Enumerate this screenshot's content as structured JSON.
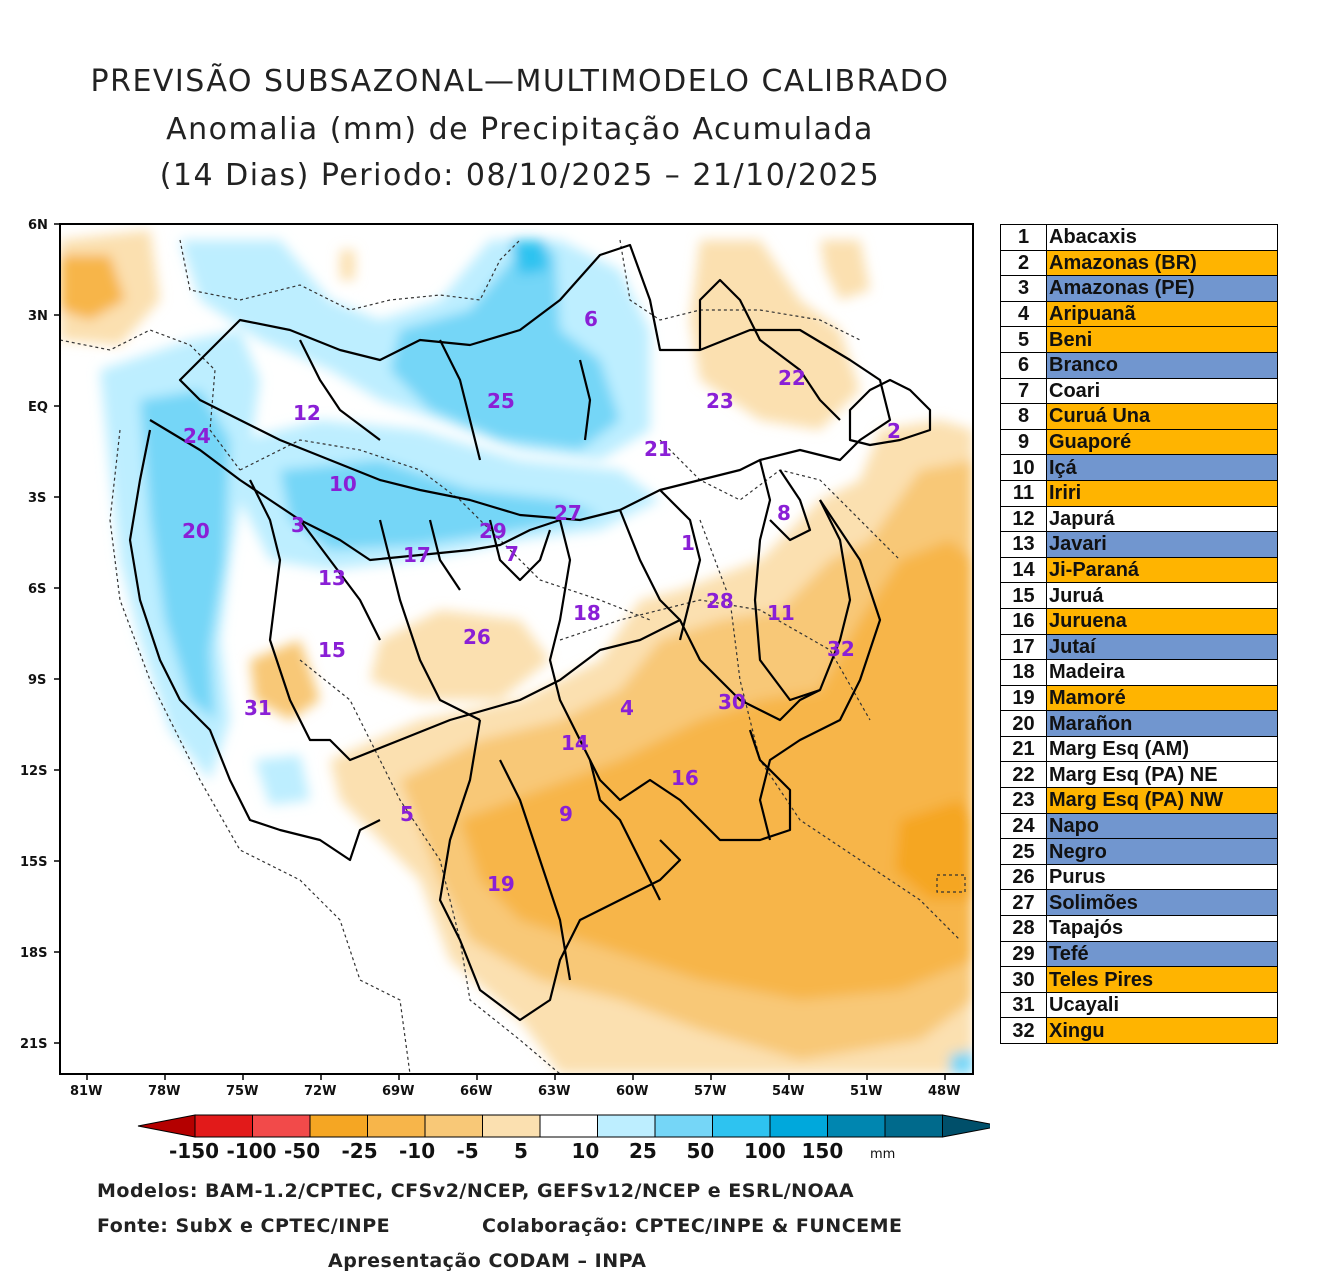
{
  "title": {
    "line1": "PREVISÃO SUBSAZONAL—MULTIMODELO CALIBRADO",
    "line2": "Anomalia (mm) de Precipitação Acumulada",
    "line3": "(14 Dias) Periodo: 08/10/2025 – 21/10/2025"
  },
  "map": {
    "lat_labels": [
      "6N",
      "3N",
      "EQ",
      "3S",
      "6S",
      "9S",
      "12S",
      "15S",
      "18S",
      "21S"
    ],
    "lon_labels": [
      "81W",
      "78W",
      "75W",
      "72W",
      "69W",
      "66W",
      "63W",
      "60W",
      "57W",
      "54W",
      "51W",
      "48W"
    ]
  },
  "basin_labels": [
    "1",
    "2",
    "3",
    "4",
    "5",
    "6",
    "7",
    "8",
    "9",
    "10",
    "11",
    "12",
    "13",
    "14",
    "15",
    "16",
    "17",
    "18",
    "19",
    "20",
    "21",
    "22",
    "23",
    "24",
    "25",
    "26",
    "27",
    "28",
    "29",
    "30",
    "31",
    "32"
  ],
  "legend": [
    {
      "num": "1",
      "name": "Abacaxis",
      "color": "#ffffff"
    },
    {
      "num": "2",
      "name": "Amazonas (BR)",
      "color": "#ffb400"
    },
    {
      "num": "3",
      "name": "Amazonas (PE)",
      "color": "#7196cf"
    },
    {
      "num": "4",
      "name": "Aripuanã",
      "color": "#ffb400"
    },
    {
      "num": "5",
      "name": "Beni",
      "color": "#ffb400"
    },
    {
      "num": "6",
      "name": "Branco",
      "color": "#7196cf"
    },
    {
      "num": "7",
      "name": "Coari",
      "color": "#ffffff"
    },
    {
      "num": "8",
      "name": "Curuá Una",
      "color": "#ffb400"
    },
    {
      "num": "9",
      "name": "Guaporé",
      "color": "#ffb400"
    },
    {
      "num": "10",
      "name": "Içá",
      "color": "#7196cf"
    },
    {
      "num": "11",
      "name": "Iriri",
      "color": "#ffb400"
    },
    {
      "num": "12",
      "name": "Japurá",
      "color": "#ffffff"
    },
    {
      "num": "13",
      "name": "Javari",
      "color": "#7196cf"
    },
    {
      "num": "14",
      "name": "Ji-Paraná",
      "color": "#ffb400"
    },
    {
      "num": "15",
      "name": "Juruá",
      "color": "#ffffff"
    },
    {
      "num": "16",
      "name": "Juruena",
      "color": "#ffb400"
    },
    {
      "num": "17",
      "name": "Jutaí",
      "color": "#7196cf"
    },
    {
      "num": "18",
      "name": "Madeira",
      "color": "#ffffff"
    },
    {
      "num": "19",
      "name": "Mamoré",
      "color": "#ffb400"
    },
    {
      "num": "20",
      "name": "Marañon",
      "color": "#7196cf"
    },
    {
      "num": "21",
      "name": "Marg Esq (AM)",
      "color": "#ffffff"
    },
    {
      "num": "22",
      "name": "Marg Esq (PA) NE",
      "color": "#ffffff"
    },
    {
      "num": "23",
      "name": "Marg Esq (PA) NW",
      "color": "#ffb400"
    },
    {
      "num": "24",
      "name": "Napo",
      "color": "#7196cf"
    },
    {
      "num": "25",
      "name": "Negro",
      "color": "#7196cf"
    },
    {
      "num": "26",
      "name": "Purus",
      "color": "#ffffff"
    },
    {
      "num": "27",
      "name": "Solimões",
      "color": "#7196cf"
    },
    {
      "num": "28",
      "name": "Tapajós",
      "color": "#ffffff"
    },
    {
      "num": "29",
      "name": "Tefé",
      "color": "#7196cf"
    },
    {
      "num": "30",
      "name": "Teles Pires",
      "color": "#ffb400"
    },
    {
      "num": "31",
      "name": "Ucayali",
      "color": "#ffffff"
    },
    {
      "num": "32",
      "name": "Xingu",
      "color": "#ffb400"
    }
  ],
  "colorbar": {
    "labels": [
      "-150",
      "-100",
      "-50",
      "-25",
      "-10",
      "-5",
      "5",
      "10",
      "25",
      "50",
      "100",
      "150"
    ],
    "unit": "mm",
    "colors": [
      "#b40000",
      "#e21a1a",
      "#f24a4a",
      "#f5a623",
      "#f7b54a",
      "#f8c877",
      "#fbe0b0",
      "#ffffff",
      "#bdeeff",
      "#75d6f7",
      "#2ec3f0",
      "#00a8dc",
      "#0086b0",
      "#006a8c",
      "#004f6a"
    ]
  },
  "credits": {
    "models": "Modelos: BAM-1.2/CPTEC, CFSv2/NCEP, GEFSv12/NCEP e ESRL/NOAA",
    "source": "Fonte: SubX e CPTEC/INPE",
    "collab": "Colaboração: CPTEC/INPE & FUNCEME",
    "presentation": "Apresentação CODAM – INPA"
  }
}
